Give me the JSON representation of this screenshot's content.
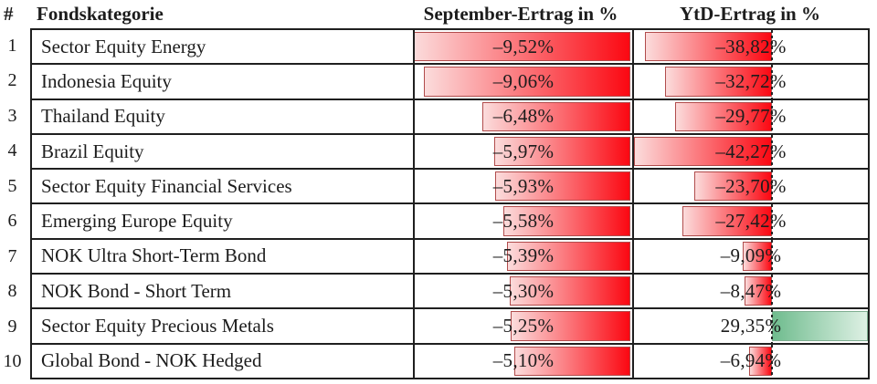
{
  "table": {
    "columns": {
      "num": "#",
      "category": "Fondskategorie",
      "september": "September-Ertrag in %",
      "ytd": "YtD-Ertrag in %"
    },
    "rows": [
      {
        "num": "1",
        "category": "Sector Equity Energy",
        "september": {
          "display": "–9,52%",
          "value": -9.52
        },
        "ytd": {
          "display": "–38,82%",
          "value": -38.82
        }
      },
      {
        "num": "2",
        "category": "Indonesia Equity",
        "september": {
          "display": "–9,06%",
          "value": -9.06
        },
        "ytd": {
          "display": "–32,72%",
          "value": -32.72
        }
      },
      {
        "num": "3",
        "category": "Thailand Equity",
        "september": {
          "display": "–6,48%",
          "value": -6.48
        },
        "ytd": {
          "display": "–29,77%",
          "value": -29.77
        }
      },
      {
        "num": "4",
        "category": "Brazil Equity",
        "september": {
          "display": "–5,97%",
          "value": -5.97
        },
        "ytd": {
          "display": "–42,27%",
          "value": -42.27
        }
      },
      {
        "num": "5",
        "category": "Sector Equity Financial Services",
        "september": {
          "display": "–5,93%",
          "value": -5.93
        },
        "ytd": {
          "display": "–23,70%",
          "value": -23.7
        }
      },
      {
        "num": "6",
        "category": "Emerging Europe Equity",
        "september": {
          "display": "–5,58%",
          "value": -5.58
        },
        "ytd": {
          "display": "–27,42%",
          "value": -27.42
        }
      },
      {
        "num": "7",
        "category": "NOK Ultra Short-Term Bond",
        "september": {
          "display": "–5,39%",
          "value": -5.39
        },
        "ytd": {
          "display": "–9,09%",
          "value": -9.09
        }
      },
      {
        "num": "8",
        "category": "NOK Bond - Short Term",
        "september": {
          "display": "–5,30%",
          "value": -5.3
        },
        "ytd": {
          "display": "–8,47%",
          "value": -8.47
        }
      },
      {
        "num": "9",
        "category": "Sector Equity Precious Metals",
        "september": {
          "display": "–5,25%",
          "value": -5.25
        },
        "ytd": {
          "display": "29,35%",
          "value": 29.35
        }
      },
      {
        "num": "10",
        "category": "Global Bond - NOK Hedged",
        "september": {
          "display": "–5,10%",
          "value": -5.1
        },
        "ytd": {
          "display": "–6,94%",
          "value": -6.94
        }
      }
    ]
  },
  "colors": {
    "text": "#1c1c1c",
    "grid": "#1f1f1f",
    "neg-light": "#fbdcdc",
    "neg-strong": "#fb0812",
    "neg-border": "#b14c4c",
    "pos-strong": "#6fbc8e",
    "pos-light": "#def0e4",
    "pos-border": "#7fae91",
    "axis": "#222222"
  },
  "chart_data": {
    "type": "table",
    "title": "",
    "columns": [
      "#",
      "Fondskategorie",
      "September-Ertrag in %",
      "YtD-Ertrag in %"
    ],
    "rows": [
      [
        1,
        "Sector Equity Energy",
        -9.52,
        -38.82
      ],
      [
        2,
        "Indonesia Equity",
        -9.06,
        -32.72
      ],
      [
        3,
        "Thailand Equity",
        -6.48,
        -29.77
      ],
      [
        4,
        "Brazil Equity",
        -5.97,
        -42.27
      ],
      [
        5,
        "Sector Equity Financial Services",
        -5.93,
        -23.7
      ],
      [
        6,
        "Emerging Europe Equity",
        -5.58,
        -27.42
      ],
      [
        7,
        "NOK Ultra Short-Term Bond",
        -5.39,
        -9.09
      ],
      [
        8,
        "NOK Bond - Short Term",
        -5.3,
        -8.47
      ],
      [
        9,
        "Sector Equity Precious Metals",
        -5.25,
        29.35
      ],
      [
        10,
        "Global Bond - NOK Hedged",
        -5.1,
        -6.94
      ]
    ],
    "value_format": "percent, German decimal comma",
    "databars": {
      "september_column": {
        "style": "red gradient bar, anchored right (zero at right cell edge)",
        "scale_abs_max": 9.52
      },
      "ytd_column": {
        "style": "red gradient left of dashed zero axis for negatives, green gradient right of axis for positives",
        "min": -42.27,
        "max": 29.35
      }
    }
  }
}
